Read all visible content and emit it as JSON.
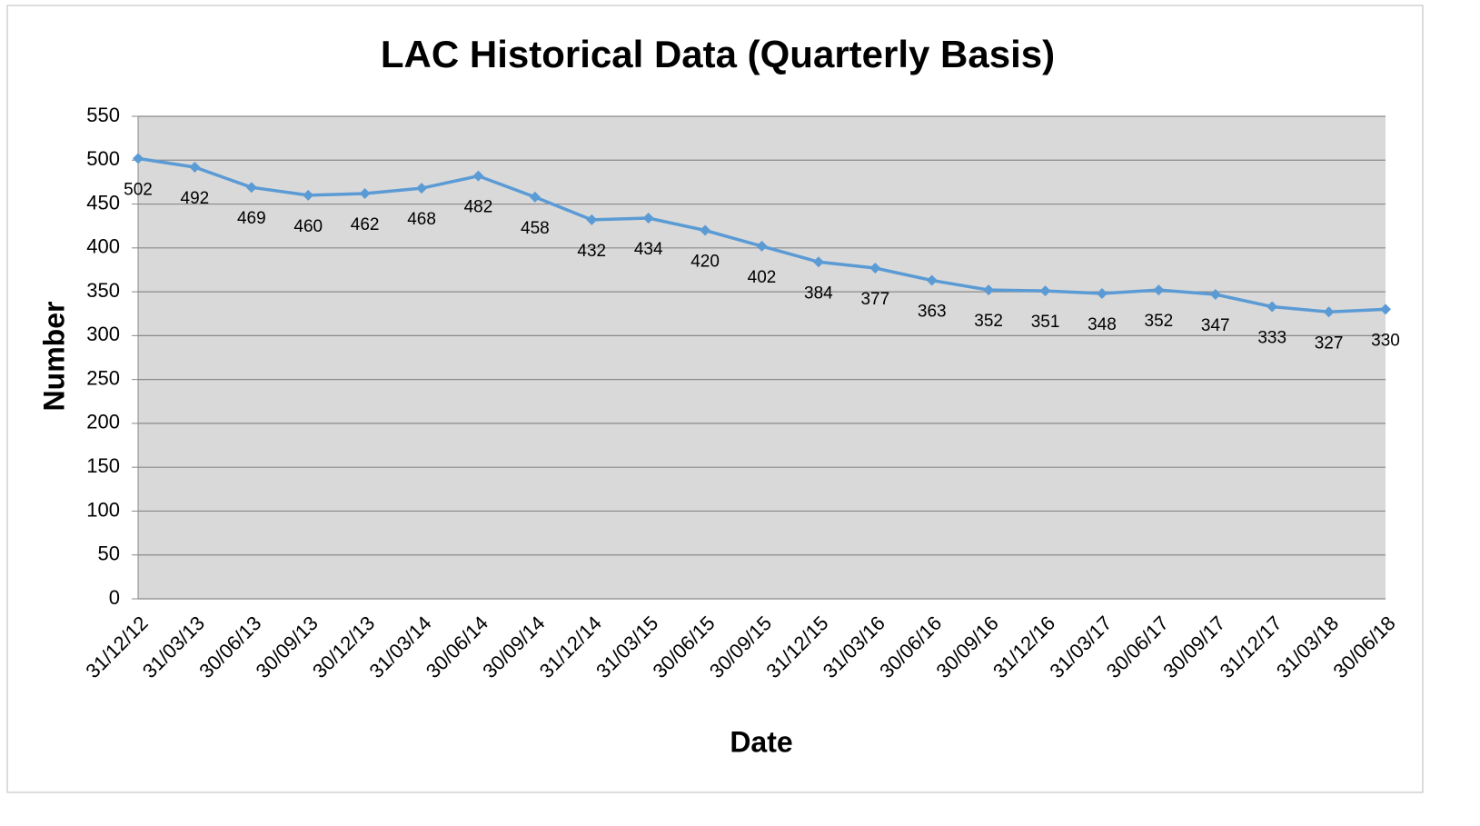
{
  "chart_data": {
    "type": "line",
    "title": "LAC Historical Data (Quarterly Basis)",
    "x_label": "Date",
    "y_label": "Number",
    "categories": [
      "31/12/12",
      "31/03/13",
      "30/06/13",
      "30/09/13",
      "30/12/13",
      "31/03/14",
      "30/06/14",
      "30/09/14",
      "31/12/14",
      "31/03/15",
      "30/06/15",
      "30/09/15",
      "31/12/15",
      "31/03/16",
      "30/06/16",
      "30/09/16",
      "31/12/16",
      "31/03/17",
      "30/06/17",
      "30/09/17",
      "31/12/17",
      "31/03/18",
      "30/06/18"
    ],
    "values": [
      502,
      492,
      469,
      460,
      462,
      468,
      482,
      458,
      432,
      434,
      420,
      402,
      384,
      377,
      363,
      352,
      351,
      348,
      352,
      347,
      333,
      327,
      330
    ],
    "color": "#5b9bd5",
    "ylim": [
      0,
      550
    ],
    "yticks": [
      0,
      50,
      100,
      150,
      200,
      250,
      300,
      350,
      400,
      450,
      500,
      550
    ],
    "grid": true
  }
}
